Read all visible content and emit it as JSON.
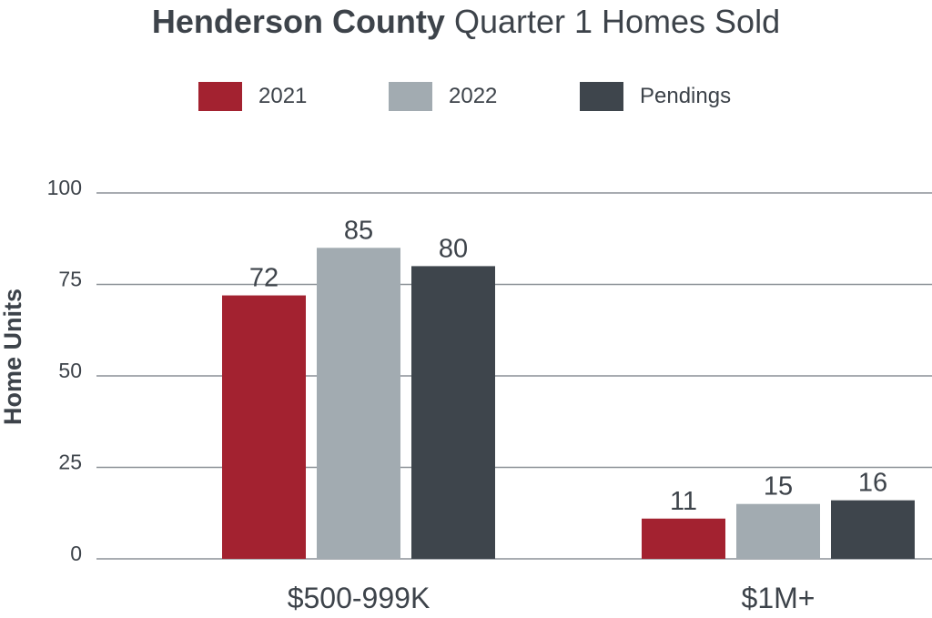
{
  "header": {
    "title_bold": "Henderson County",
    "title_rest": "Quarter 1 Homes Sold"
  },
  "legend": [
    {
      "label": "2021",
      "color": "#a32230"
    },
    {
      "label": "2022",
      "color": "#a2abb1"
    },
    {
      "label": "Pendings",
      "color": "#3e454c"
    }
  ],
  "chart_data": {
    "type": "bar",
    "title": "Henderson County Quarter 1 Homes Sold",
    "xlabel": "",
    "ylabel": "Home Units",
    "ylim": [
      0,
      100
    ],
    "yticks": [
      "0",
      "25",
      "50",
      "75",
      "100"
    ],
    "grid": true,
    "legend_position": "top-center",
    "categories": [
      "$500-999K",
      "$1M+"
    ],
    "series": [
      {
        "name": "2021",
        "values": [
          72,
          11
        ],
        "color": "#a32230"
      },
      {
        "name": "2022",
        "values": [
          85,
          15
        ],
        "color": "#a2abb1"
      },
      {
        "name": "Pendings",
        "values": [
          80,
          16
        ],
        "color": "#3e454c"
      }
    ]
  }
}
